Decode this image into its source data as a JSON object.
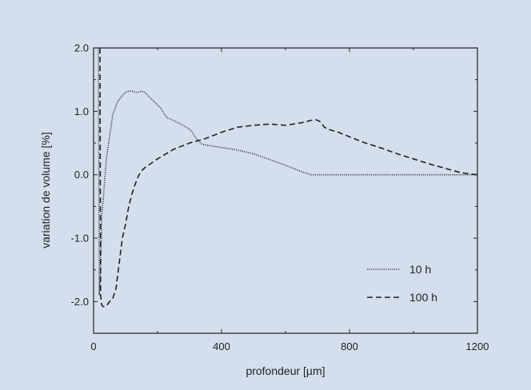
{
  "chart_data": {
    "type": "line",
    "title": "",
    "xlabel": "profondeur [µm]",
    "ylabel": "variation de volume [%]",
    "xlim": [
      0,
      1200
    ],
    "ylim": [
      -2.5,
      2.0
    ],
    "x_ticks": [
      0,
      400,
      800,
      1200
    ],
    "x_tick_labels": [
      "0",
      "400",
      "800",
      "1200"
    ],
    "y_ticks": [
      2.0,
      1.0,
      0.0,
      -1.0,
      -2.0
    ],
    "y_tick_labels": [
      "2.0",
      "1.0",
      "0.0",
      "-1.0",
      "-2.0"
    ],
    "grid": false,
    "legend_position": "bottom-right",
    "series": [
      {
        "name": "10 h",
        "style": "dotted",
        "x": [
          15,
          18,
          22,
          26,
          30,
          40,
          50,
          60,
          75,
          90,
          100,
          110,
          120,
          130,
          140,
          150,
          160,
          170,
          180,
          190,
          200,
          210,
          220,
          230,
          240,
          260,
          280,
          300,
          310,
          320,
          330,
          340,
          350,
          400,
          450,
          500,
          550,
          600,
          650,
          680,
          700,
          800,
          900,
          1000,
          1100,
          1200
        ],
        "y": [
          2.0,
          -1.9,
          -1.5,
          -0.6,
          -0.4,
          0.25,
          0.6,
          0.95,
          1.15,
          1.25,
          1.3,
          1.32,
          1.32,
          1.3,
          1.3,
          1.32,
          1.3,
          1.25,
          1.2,
          1.15,
          1.1,
          1.05,
          0.97,
          0.9,
          0.88,
          0.83,
          0.78,
          0.72,
          0.66,
          0.58,
          0.52,
          0.48,
          0.47,
          0.43,
          0.39,
          0.33,
          0.24,
          0.15,
          0.05,
          0.0,
          0.0,
          0.0,
          0.0,
          0.0,
          0.0,
          0.0
        ]
      },
      {
        "name": "100 h",
        "style": "dashed",
        "x": [
          20,
          22,
          25,
          30,
          40,
          50,
          60,
          70,
          80,
          90,
          100,
          110,
          120,
          130,
          140,
          150,
          160,
          180,
          200,
          250,
          300,
          350,
          400,
          450,
          500,
          550,
          600,
          650,
          690,
          700,
          710,
          720,
          730,
          760,
          800,
          850,
          900,
          950,
          1000,
          1050,
          1100,
          1150,
          1200
        ],
        "y": [
          2.0,
          -1.9,
          -2.05,
          -2.08,
          -2.07,
          -2.0,
          -1.95,
          -1.8,
          -1.4,
          -1.0,
          -0.78,
          -0.5,
          -0.3,
          -0.15,
          -0.02,
          0.06,
          0.11,
          0.18,
          0.25,
          0.4,
          0.5,
          0.57,
          0.67,
          0.75,
          0.78,
          0.8,
          0.78,
          0.82,
          0.87,
          0.86,
          0.83,
          0.76,
          0.72,
          0.68,
          0.6,
          0.5,
          0.42,
          0.33,
          0.25,
          0.17,
          0.1,
          0.03,
          0.0
        ]
      }
    ]
  }
}
